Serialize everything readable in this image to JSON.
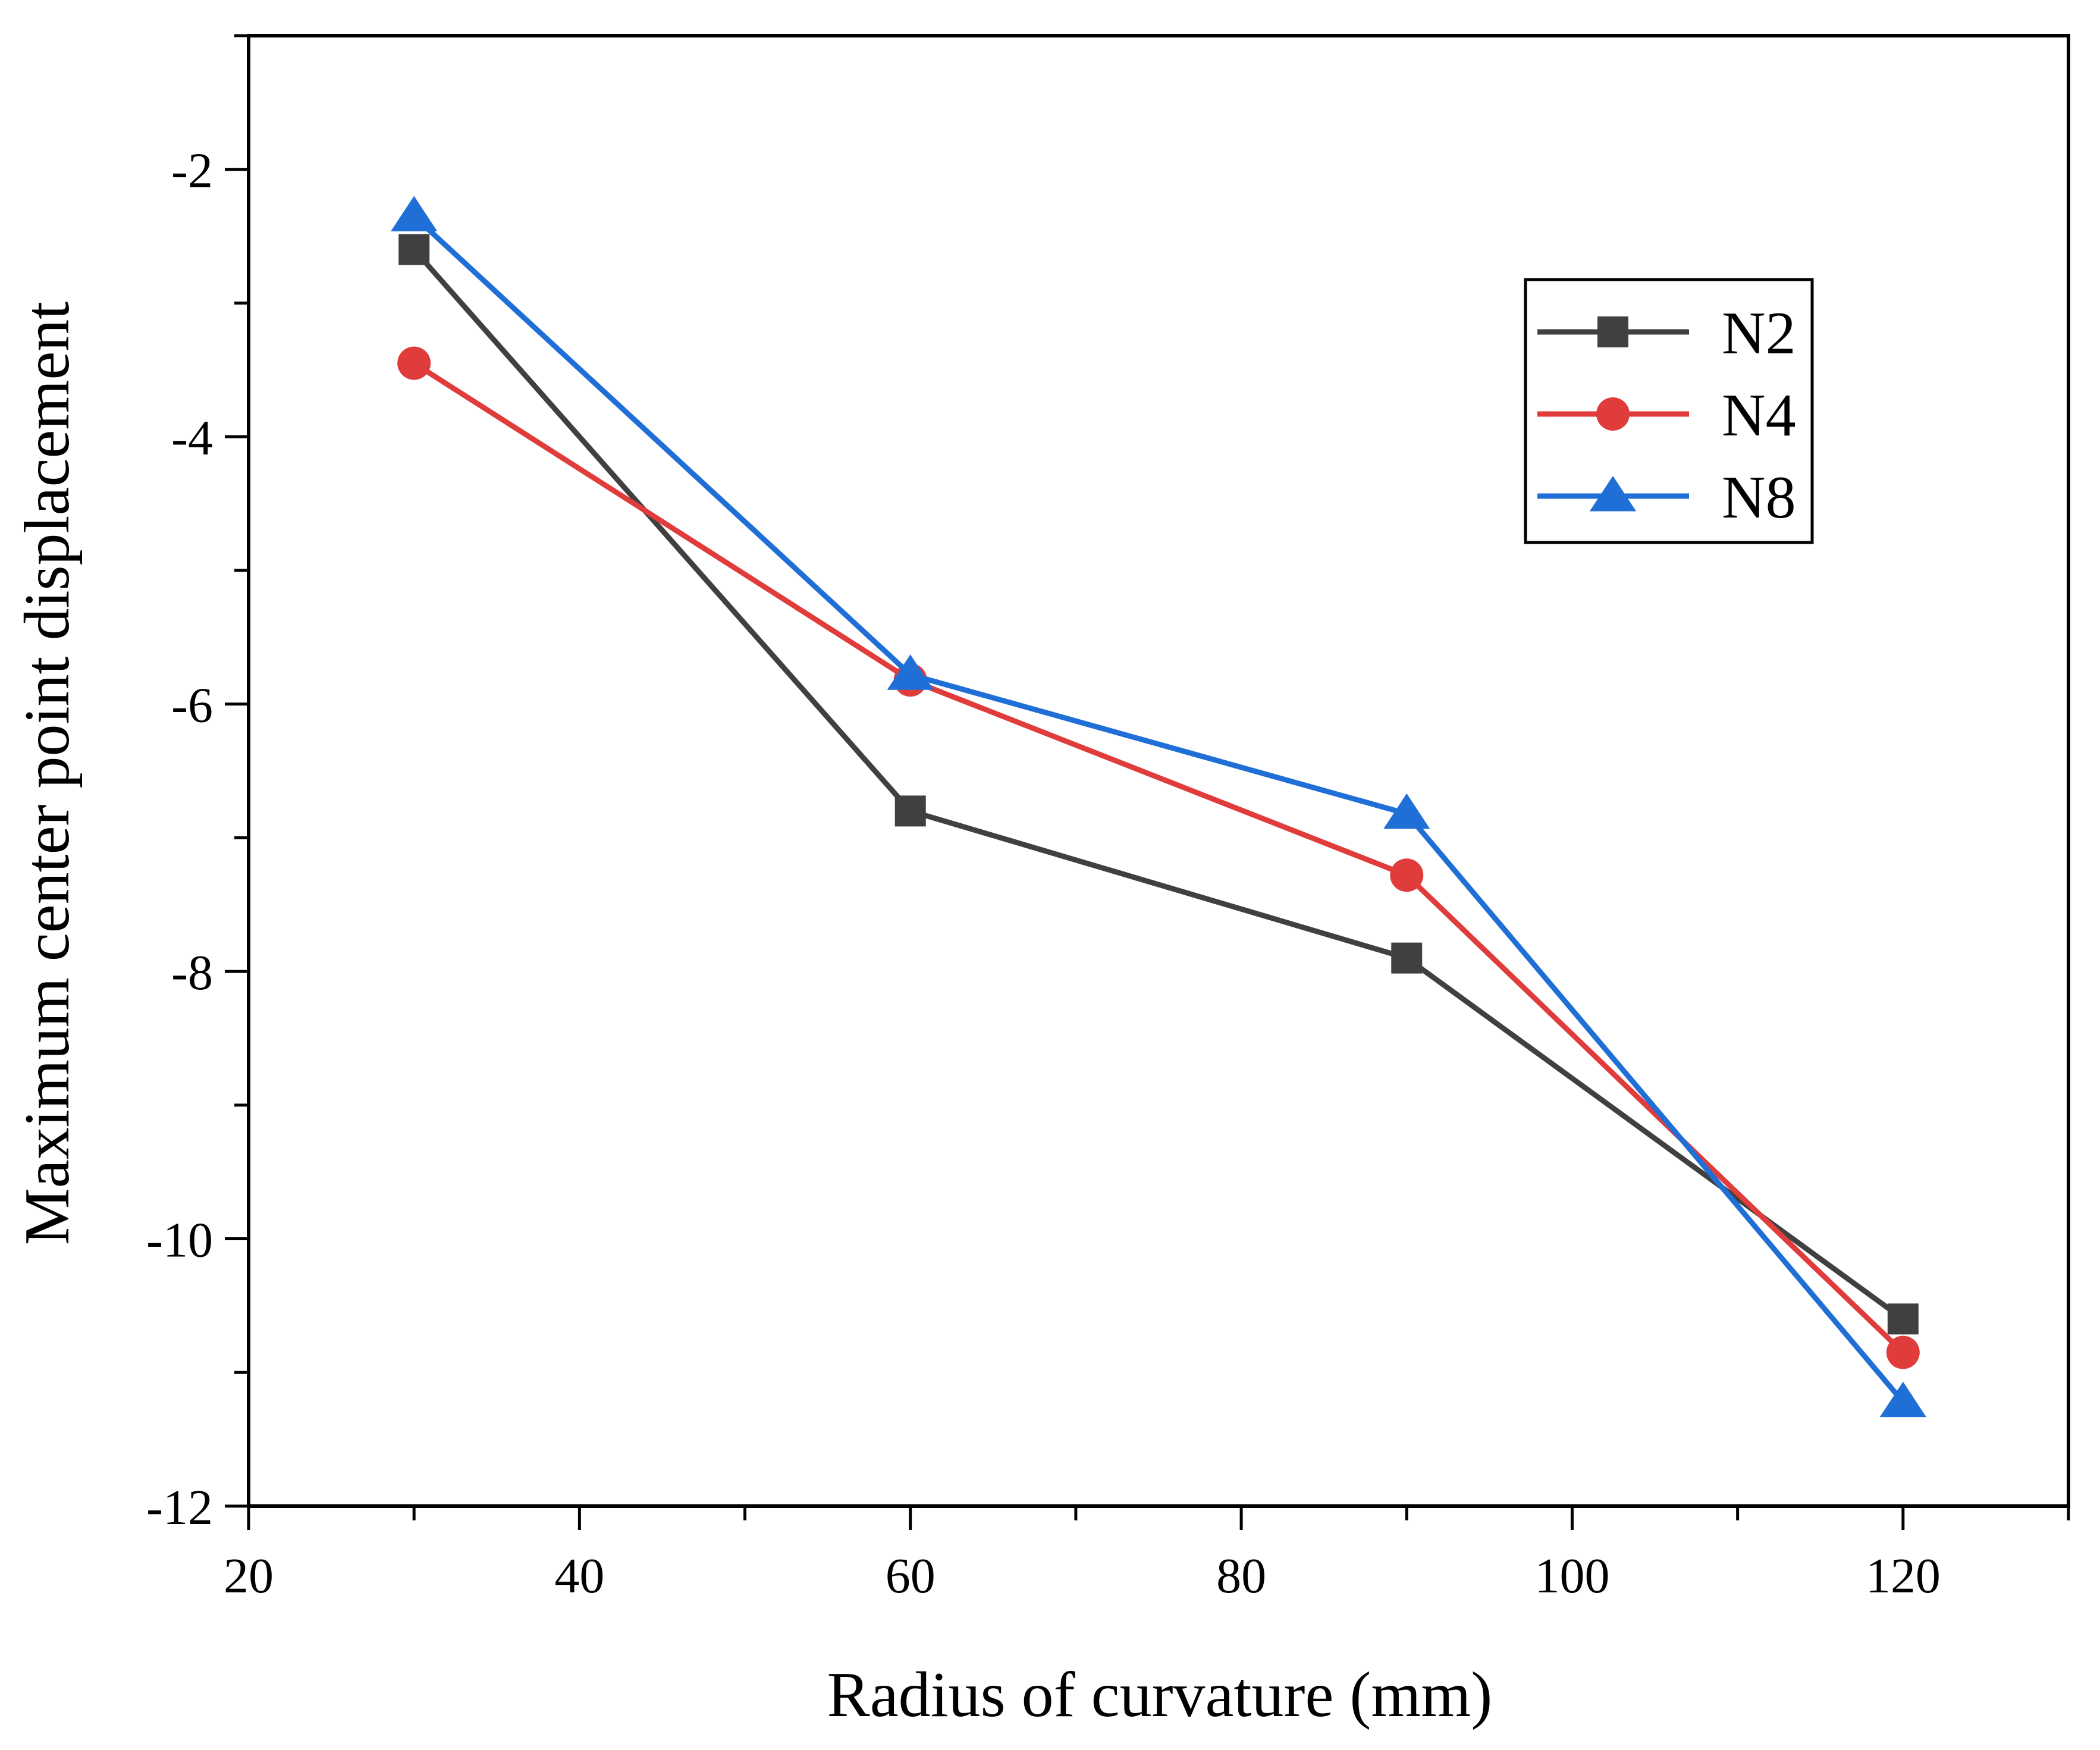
{
  "chart_data": {
    "type": "line",
    "title": "",
    "xlabel": "Radius of curvature (mm)",
    "ylabel": "Maximum center point displacement",
    "xlim": [
      20,
      130
    ],
    "ylim": [
      -12,
      -1
    ],
    "x_ticks": [
      20,
      40,
      60,
      80,
      100,
      120
    ],
    "x_tick_labels": [
      "20",
      "40",
      "60",
      "80",
      "100",
      "120"
    ],
    "y_ticks": [
      -12,
      -10,
      -8,
      -6,
      -4,
      -2
    ],
    "y_tick_labels": [
      "-12",
      "-10",
      "-8",
      "-6",
      "-4",
      "-2"
    ],
    "grid": false,
    "legend_position": "upper-right",
    "x": [
      30,
      60,
      90,
      120
    ],
    "series": [
      {
        "name": "N2",
        "values": [
          -2.6,
          -6.8,
          -7.9,
          -10.6
        ],
        "color": "#404040",
        "marker": "square"
      },
      {
        "name": "N4",
        "values": [
          -3.45,
          -5.82,
          -7.28,
          -10.85
        ],
        "color": "#e03c3c",
        "marker": "circle"
      },
      {
        "name": "N8",
        "values": [
          -2.35,
          -5.78,
          -6.82,
          -11.22
        ],
        "color": "#1f6fd6",
        "marker": "triangle"
      }
    ]
  }
}
